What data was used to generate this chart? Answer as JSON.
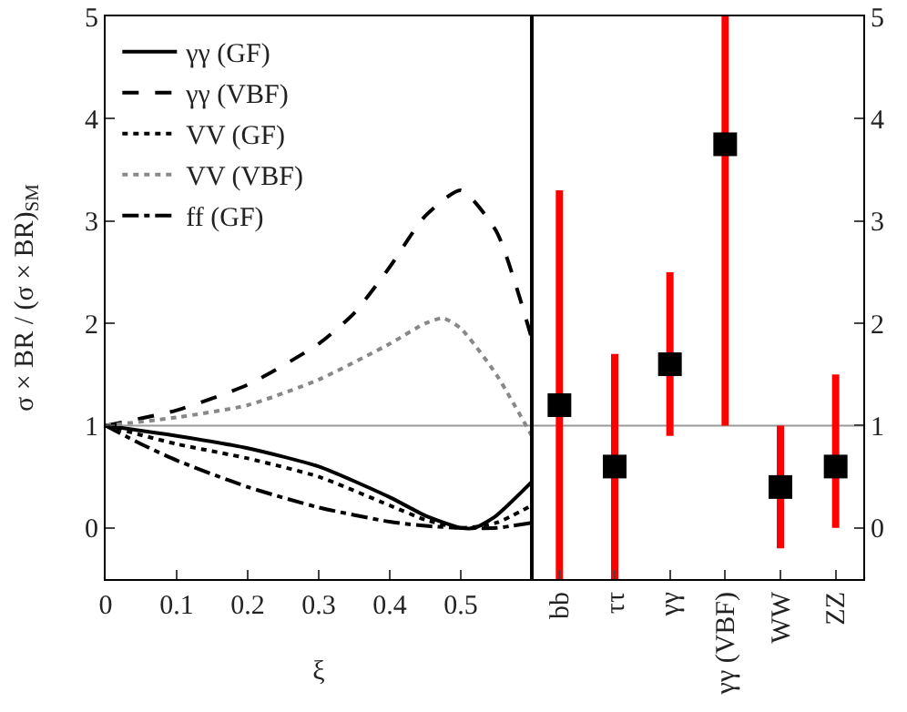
{
  "chart_data": [
    {
      "type": "line",
      "xlabel": "ξ",
      "ylabel": "σ × BR / (σ × BR)$_{SM}$",
      "xlim": [
        0,
        0.6
      ],
      "xticks": [
        0,
        0.1,
        0.2,
        0.3,
        0.4,
        0.5
      ],
      "ylim": [
        -0.5,
        5
      ],
      "yticks": [
        0,
        1,
        2,
        3,
        4,
        5
      ],
      "grid": false,
      "legend": "top left",
      "marker": "none",
      "ref_lines": [
        {
          "axis": "y",
          "value": 1,
          "color": "#999999"
        }
      ],
      "series": [
        {
          "name": "γγ (GF)",
          "color": "#000000",
          "line_style": "solid",
          "x": [
            0,
            0.1,
            0.2,
            0.3,
            0.4,
            0.45,
            0.5,
            0.52,
            0.55,
            0.6
          ],
          "values": [
            1,
            0.9,
            0.78,
            0.6,
            0.3,
            0.12,
            0,
            0,
            0.12,
            0.45
          ]
        },
        {
          "name": "γγ (VBF)",
          "color": "#000000",
          "line_style": "dashed",
          "x": [
            0,
            0.1,
            0.2,
            0.3,
            0.35,
            0.4,
            0.45,
            0.5,
            0.55,
            0.6
          ],
          "values": [
            1,
            1.15,
            1.4,
            1.8,
            2.1,
            2.55,
            3.05,
            3.3,
            2.9,
            1.85
          ]
        },
        {
          "name": "VV (GF)",
          "color": "#000000",
          "line_style": "dotted",
          "x": [
            0,
            0.1,
            0.2,
            0.3,
            0.4,
            0.45,
            0.5,
            0.55,
            0.6
          ],
          "values": [
            1,
            0.82,
            0.68,
            0.5,
            0.22,
            0.08,
            0,
            0.05,
            0.22
          ]
        },
        {
          "name": "VV (VBF)",
          "color": "#888888",
          "line_style": "dotted",
          "x": [
            0,
            0.1,
            0.2,
            0.3,
            0.4,
            0.45,
            0.475,
            0.5,
            0.55,
            0.6
          ],
          "values": [
            1,
            1.08,
            1.2,
            1.45,
            1.8,
            2,
            2.05,
            1.95,
            1.5,
            0.9
          ]
        },
        {
          "name": "ff (GF)",
          "color": "#000000",
          "line_style": "dashdot",
          "x": [
            0,
            0.05,
            0.1,
            0.2,
            0.3,
            0.4,
            0.45,
            0.5,
            0.55,
            0.6
          ],
          "values": [
            1,
            0.82,
            0.66,
            0.4,
            0.2,
            0.06,
            0.02,
            0,
            0,
            0.05
          ]
        }
      ]
    },
    {
      "type": "scatter",
      "categories": [
        "bb",
        "ττ",
        "γγ",
        "γγ (VBF)",
        "WW",
        "ZZ"
      ],
      "ylim": [
        -0.5,
        5
      ],
      "yticks": [
        0,
        1,
        2,
        3,
        4,
        5
      ],
      "grid": false,
      "legend": false,
      "marker": "square",
      "ref_lines": [
        {
          "axis": "y",
          "value": 1,
          "color": "#999999"
        }
      ],
      "series": [
        {
          "color": "#000000",
          "values": [
            1.2,
            0.6,
            1.6,
            3.75,
            0.4,
            0.6
          ],
          "errors": [
            [
              -0.5,
              3.3
            ],
            [
              -0.5,
              1.7
            ],
            [
              0.9,
              2.5
            ],
            [
              1,
              5
            ],
            [
              -0.2,
              1
            ],
            [
              0,
              1.5
            ]
          ]
        }
      ]
    }
  ]
}
